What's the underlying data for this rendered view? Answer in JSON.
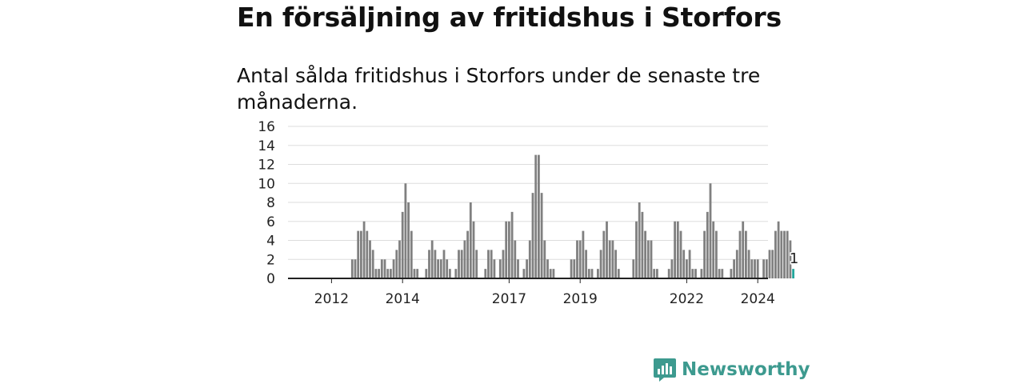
{
  "title": "En försäljning av fritidshus i Storfors",
  "subtitle": "Antal sålda fritidshus i Storfors under de senaste tre månaderna.",
  "logo": {
    "text": "Newsworthy",
    "icon": "newsworthy-logo-icon"
  },
  "colors": {
    "bar": "#808080",
    "highlight": "#23a79c",
    "grid": "#dddddd",
    "axis": "#222222"
  },
  "chart_data": {
    "type": "bar",
    "title": "",
    "xlabel": "",
    "ylabel": "",
    "ylim": [
      0,
      16
    ],
    "yticks": [
      0,
      2,
      4,
      6,
      8,
      10,
      12,
      14,
      16
    ],
    "xticks": [
      "2012",
      "2014",
      "2017",
      "2019",
      "2022",
      "2024"
    ],
    "grid": true,
    "start_month": "2011-01",
    "values": [
      0,
      0,
      0,
      0,
      0,
      0,
      0,
      0,
      0,
      0,
      0,
      0,
      0,
      0,
      0,
      0,
      0,
      0,
      0,
      2,
      2,
      5,
      5,
      6,
      5,
      4,
      3,
      1,
      1,
      2,
      2,
      1,
      1,
      2,
      3,
      4,
      7,
      10,
      8,
      5,
      1,
      1,
      0,
      0,
      1,
      3,
      4,
      3,
      2,
      2,
      3,
      2,
      1,
      0,
      1,
      3,
      3,
      4,
      5,
      8,
      6,
      3,
      0,
      0,
      1,
      3,
      3,
      2,
      0,
      2,
      3,
      6,
      6,
      7,
      4,
      2,
      0,
      1,
      2,
      4,
      9,
      13,
      13,
      9,
      4,
      2,
      1,
      1,
      0,
      0,
      0,
      0,
      0,
      2,
      2,
      4,
      4,
      5,
      3,
      1,
      1,
      0,
      1,
      3,
      5,
      6,
      4,
      4,
      3,
      1,
      0,
      0,
      0,
      0,
      2,
      6,
      8,
      7,
      5,
      4,
      4,
      1,
      1,
      0,
      0,
      0,
      1,
      2,
      6,
      6,
      5,
      3,
      2,
      3,
      1,
      1,
      0,
      1,
      5,
      7,
      10,
      6,
      5,
      1,
      1,
      0,
      0,
      1,
      2,
      3,
      5,
      6,
      5,
      3,
      2,
      2,
      2,
      0,
      2,
      2,
      3,
      3,
      5,
      6,
      5,
      5,
      5,
      4,
      1
    ],
    "latest_value": 1,
    "latest_label": "1"
  }
}
